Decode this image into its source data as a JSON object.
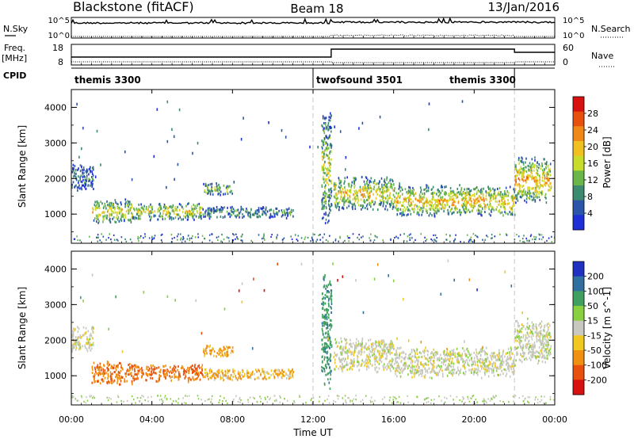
{
  "header": {
    "station": "Blackstone (fitACF)",
    "beam": "Beam 18",
    "date": "13/Jan/2016"
  },
  "top_panels": {
    "nsky_label": "N.Sky",
    "nsearch_label": "N.Search",
    "noise_ticks": [
      "10^5",
      "10^0"
    ],
    "freq_label_line1": "Freq.",
    "freq_label_line2": "[MHz]",
    "freq_ticks": [
      "18",
      "8"
    ],
    "nave_label": "Nave",
    "nave_ticks": [
      "60",
      "0"
    ],
    "cpid_label": "CPID",
    "cpid_segments": [
      {
        "name": "themis 3300",
        "start_hour": 0.0,
        "end_hour": 12.0
      },
      {
        "name": "twofsound 3501",
        "start_hour": 12.0,
        "end_hour": 22.0
      },
      {
        "name": "themis 3300",
        "start_hour": 22.0,
        "end_hour": 24.0
      }
    ]
  },
  "x_axis": {
    "label": "Time UT",
    "ticks": [
      "00:00",
      "04:00",
      "08:00",
      "12:00",
      "16:00",
      "20:00",
      "00:00"
    ],
    "tick_hours": [
      0,
      4,
      8,
      12,
      16,
      20,
      24
    ]
  },
  "colors": {
    "power_scale": [
      "#1f2fd8",
      "#2a55a8",
      "#3c8a70",
      "#6ab64a",
      "#c8dc2c",
      "#f0c020",
      "#f08818",
      "#e85010",
      "#d81010"
    ],
    "velocity_scale": [
      "#2030c0",
      "#3070a0",
      "#40a060",
      "#88d040",
      "#c8c8c0",
      "#f0c820",
      "#f09010",
      "#e85010",
      "#d81010"
    ]
  },
  "chart_data": [
    {
      "type": "heatmap",
      "title": "",
      "xlabel": "Time UT",
      "ylabel": "Slant Range [km]",
      "xlim_hours": [
        0,
        24
      ],
      "ylim_km": [
        180,
        4500
      ],
      "yticks": [
        "1000",
        "2000",
        "3000",
        "4000"
      ],
      "ytick_values": [
        1000,
        2000,
        3000,
        4000
      ],
      "colorbar_label": "Power [dB]",
      "colorbar_ticks": [
        "4",
        "8",
        "12",
        "16",
        "20",
        "24",
        "28"
      ],
      "colorbar_tick_values": [
        4,
        8,
        12,
        16,
        20,
        24,
        28
      ],
      "colorbar_range": [
        0,
        30
      ],
      "scatter_regions": [
        {
          "t_start": 0.0,
          "t_end": 1.1,
          "range_start": 1650,
          "range_end": 2450,
          "level": 0.25
        },
        {
          "t_start": 1.0,
          "t_end": 3.0,
          "range_start": 750,
          "range_end": 1450,
          "level": 0.6
        },
        {
          "t_start": 3.0,
          "t_end": 6.5,
          "range_start": 850,
          "range_end": 1350,
          "level": 0.55
        },
        {
          "t_start": 6.5,
          "t_end": 8.0,
          "range_start": 1550,
          "range_end": 1900,
          "level": 0.45
        },
        {
          "t_start": 6.5,
          "t_end": 11.0,
          "range_start": 900,
          "range_end": 1250,
          "level": 0.3
        },
        {
          "t_start": 12.4,
          "t_end": 12.9,
          "range_start": 600,
          "range_end": 4000,
          "level": 0.5
        },
        {
          "t_start": 13.0,
          "t_end": 16.0,
          "range_start": 1100,
          "range_end": 2100,
          "level": 0.6
        },
        {
          "t_start": 16.0,
          "t_end": 22.0,
          "range_start": 950,
          "range_end": 1850,
          "level": 0.65
        },
        {
          "t_start": 22.0,
          "t_end": 23.8,
          "range_start": 1300,
          "range_end": 2650,
          "level": 0.7
        }
      ]
    },
    {
      "type": "heatmap",
      "title": "",
      "xlabel": "Time UT",
      "ylabel": "Slant Range [km]",
      "xlim_hours": [
        0,
        24
      ],
      "ylim_km": [
        180,
        4500
      ],
      "yticks": [
        "1000",
        "2000",
        "3000",
        "4000"
      ],
      "ytick_values": [
        1000,
        2000,
        3000,
        4000
      ],
      "colorbar_label": "Velocity [m s^-1]",
      "colorbar_ticks": [
        "200",
        "100",
        "50",
        "15",
        "-15",
        "-50",
        "-100",
        "-200"
      ],
      "colorbar_tick_values": [
        200,
        100,
        50,
        15,
        -15,
        -50,
        -100,
        -200
      ],
      "colorbar_range": [
        -250,
        250
      ],
      "scatter_regions": [
        {
          "t_start": 0.0,
          "t_end": 1.1,
          "range_start": 1650,
          "range_end": 2450,
          "velocity": 0
        },
        {
          "t_start": 1.0,
          "t_end": 3.0,
          "range_start": 750,
          "range_end": 1450,
          "velocity": -70
        },
        {
          "t_start": 3.0,
          "t_end": 6.5,
          "range_start": 850,
          "range_end": 1350,
          "velocity": -80
        },
        {
          "t_start": 6.5,
          "t_end": 8.0,
          "range_start": 1550,
          "range_end": 1900,
          "velocity": -40
        },
        {
          "t_start": 6.5,
          "t_end": 11.0,
          "range_start": 900,
          "range_end": 1250,
          "velocity": -30
        },
        {
          "t_start": 12.4,
          "t_end": 12.9,
          "range_start": 600,
          "range_end": 4000,
          "velocity": 60
        },
        {
          "t_start": 13.0,
          "t_end": 16.0,
          "range_start": 1100,
          "range_end": 2100,
          "velocity": 0
        },
        {
          "t_start": 16.0,
          "t_end": 22.0,
          "range_start": 950,
          "range_end": 1850,
          "velocity": 0
        },
        {
          "t_start": 22.0,
          "t_end": 23.8,
          "range_start": 1300,
          "range_end": 2650,
          "velocity": 5
        }
      ]
    }
  ]
}
